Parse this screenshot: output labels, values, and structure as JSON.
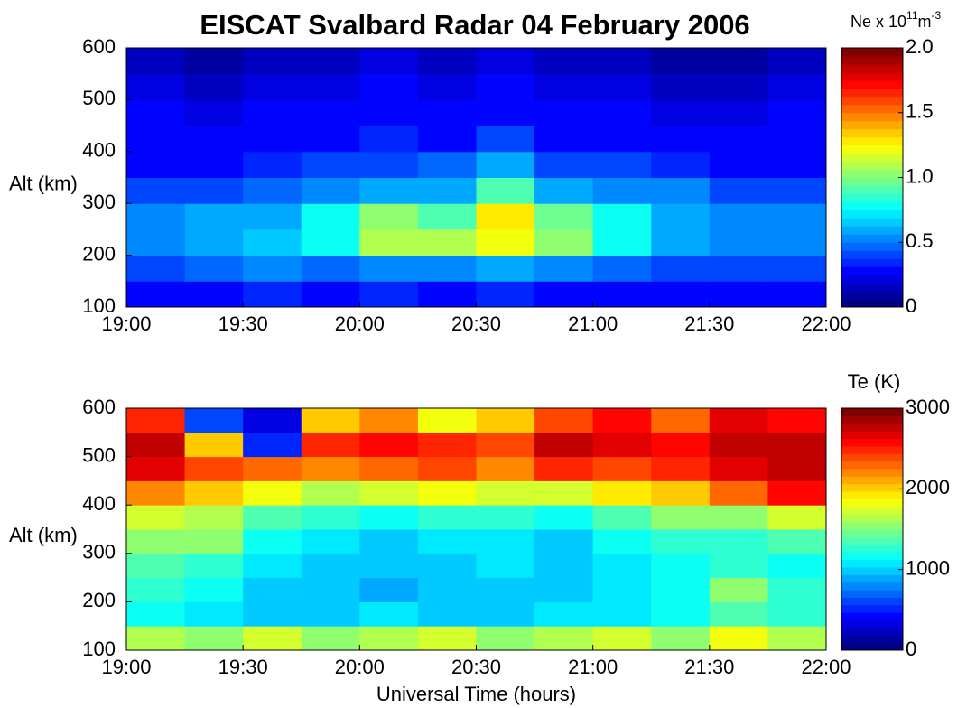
{
  "chart_data": [
    {
      "type": "heatmap",
      "title": "EISCAT Svalbard Radar 04 February 2006",
      "ylabel": "Alt (km)",
      "colormap": "jet",
      "colorbar_label": [
        "Ne x 10",
        "11",
        "m",
        "-3"
      ],
      "x": [
        19,
        19.25,
        19.5,
        19.75,
        20,
        20.25,
        20.5,
        20.75,
        21,
        21.25,
        21.5,
        21.75,
        22
      ],
      "y": [
        100,
        150,
        200,
        250,
        300,
        350,
        400,
        450,
        500,
        550,
        600
      ],
      "xlim": [
        19,
        22
      ],
      "ylim": [
        100,
        600
      ],
      "xticks": [
        {
          "value": 19,
          "label": "19:00"
        },
        {
          "value": 19.5,
          "label": "19:30"
        },
        {
          "value": 20,
          "label": "20:00"
        },
        {
          "value": 20.5,
          "label": "20:30"
        },
        {
          "value": 21,
          "label": "21:00"
        },
        {
          "value": 21.5,
          "label": "21:30"
        },
        {
          "value": 22,
          "label": "22:00"
        }
      ],
      "yticks": [
        100,
        200,
        300,
        400,
        500,
        600
      ],
      "clim": [
        0,
        2
      ],
      "cticks": [
        0,
        0.5,
        {
          "value": 1,
          "label": "1.0"
        },
        1.5,
        {
          "value": 2,
          "label": "2.0"
        }
      ],
      "z": [
        [
          0.3,
          0.3,
          0.35,
          0.3,
          0.35,
          0.3,
          0.35,
          0.3,
          0.3,
          0.3,
          0.3,
          0.3
        ],
        [
          0.4,
          0.45,
          0.5,
          0.45,
          0.55,
          0.5,
          0.6,
          0.5,
          0.45,
          0.4,
          0.4,
          0.4
        ],
        [
          0.5,
          0.6,
          0.65,
          0.8,
          1.1,
          1.1,
          1.2,
          1.0,
          0.8,
          0.6,
          0.5,
          0.5
        ],
        [
          0.5,
          0.6,
          0.6,
          0.8,
          1.0,
          0.9,
          1.3,
          0.95,
          0.8,
          0.6,
          0.5,
          0.5
        ],
        [
          0.4,
          0.4,
          0.45,
          0.5,
          0.6,
          0.6,
          0.9,
          0.6,
          0.5,
          0.5,
          0.4,
          0.4
        ],
        [
          0.3,
          0.3,
          0.35,
          0.4,
          0.4,
          0.45,
          0.6,
          0.4,
          0.4,
          0.35,
          0.3,
          0.3
        ],
        [
          0.3,
          0.25,
          0.3,
          0.3,
          0.35,
          0.3,
          0.4,
          0.3,
          0.3,
          0.3,
          0.25,
          0.3
        ],
        [
          0.25,
          0.2,
          0.25,
          0.25,
          0.3,
          0.25,
          0.3,
          0.25,
          0.25,
          0.2,
          0.2,
          0.25
        ],
        [
          0.2,
          0.15,
          0.2,
          0.2,
          0.25,
          0.2,
          0.25,
          0.2,
          0.2,
          0.15,
          0.15,
          0.2
        ],
        [
          0.15,
          0.1,
          0.15,
          0.15,
          0.2,
          0.15,
          0.2,
          0.15,
          0.15,
          0.1,
          0.1,
          0.15
        ]
      ]
    },
    {
      "type": "heatmap",
      "ylabel": "Alt (km)",
      "xlabel": "Universal Time (hours)",
      "colormap": "jet",
      "colorbar_label": [
        "Te (K)"
      ],
      "x": [
        19,
        19.25,
        19.5,
        19.75,
        20,
        20.25,
        20.5,
        20.75,
        21,
        21.25,
        21.5,
        21.75,
        22
      ],
      "y": [
        100,
        150,
        200,
        250,
        300,
        350,
        400,
        450,
        500,
        550,
        600
      ],
      "xlim": [
        19,
        22
      ],
      "ylim": [
        100,
        600
      ],
      "xticks": [
        {
          "value": 19,
          "label": "19:00"
        },
        {
          "value": 19.5,
          "label": "19:30"
        },
        {
          "value": 20,
          "label": "20:00"
        },
        {
          "value": 20.5,
          "label": "20:30"
        },
        {
          "value": 21,
          "label": "21:00"
        },
        {
          "value": 21.5,
          "label": "21:30"
        },
        {
          "value": 22,
          "label": "22:00"
        }
      ],
      "yticks": [
        100,
        200,
        300,
        400,
        500,
        600
      ],
      "clim": [
        0,
        3000
      ],
      "cticks": [
        0,
        1000,
        2000,
        3000
      ],
      "z": [
        [
          1600,
          1500,
          1700,
          1500,
          1600,
          1700,
          1500,
          1600,
          1700,
          1500,
          1800,
          1600
        ],
        [
          1200,
          1100,
          1000,
          1000,
          1100,
          1000,
          1000,
          1100,
          1100,
          1200,
          1400,
          1300
        ],
        [
          1300,
          1200,
          1000,
          1000,
          900,
          950,
          1000,
          1000,
          1100,
          1200,
          1500,
          1300
        ],
        [
          1400,
          1300,
          1100,
          1000,
          950,
          1000,
          1050,
          1000,
          1100,
          1200,
          1300,
          1200
        ],
        [
          1500,
          1500,
          1200,
          1100,
          1000,
          1100,
          1100,
          1000,
          1200,
          1300,
          1300,
          1400
        ],
        [
          1700,
          1600,
          1400,
          1300,
          1200,
          1300,
          1300,
          1200,
          1400,
          1500,
          1500,
          1700
        ],
        [
          2200,
          2000,
          1800,
          1600,
          1700,
          1800,
          1700,
          1700,
          1900,
          2000,
          2300,
          2600
        ],
        [
          2700,
          2400,
          2300,
          2200,
          2300,
          2400,
          2200,
          2500,
          2400,
          2500,
          2700,
          2800
        ],
        [
          2800,
          2000,
          500,
          2500,
          2600,
          2500,
          2400,
          2800,
          2700,
          2600,
          2800,
          2800
        ],
        [
          2500,
          600,
          300,
          2000,
          2200,
          1800,
          2000,
          2400,
          2600,
          2300,
          2700,
          2600
        ]
      ]
    }
  ]
}
